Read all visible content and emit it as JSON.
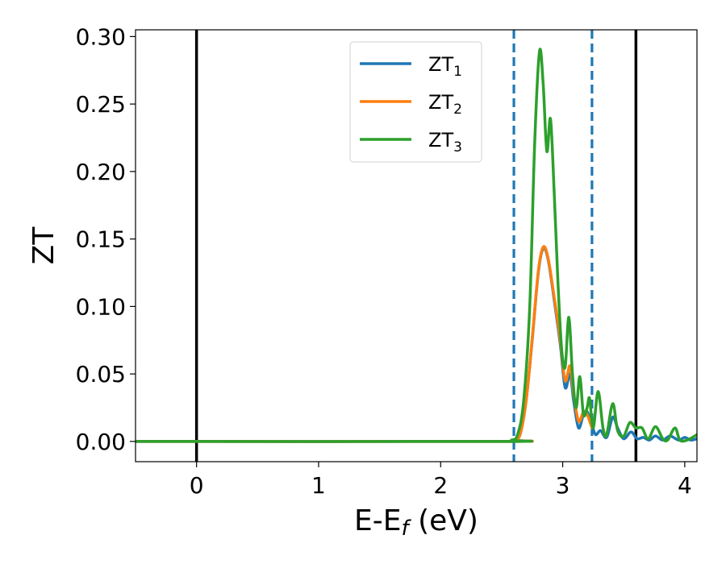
{
  "chart_data": {
    "type": "line",
    "xlabel": "E-E",
    "xlabel_sub": "f",
    "xlabel_unit": " (eV)",
    "ylabel": "ZT",
    "xlim": [
      -0.5,
      4.1
    ],
    "ylim": [
      -0.015,
      0.305
    ],
    "x_ticks": [
      0,
      1,
      2,
      3,
      4
    ],
    "x_tick_labels": [
      "0",
      "1",
      "2",
      "3",
      "4"
    ],
    "y_ticks": [
      0.0,
      0.05,
      0.1,
      0.15,
      0.2,
      0.25,
      0.3
    ],
    "y_tick_labels": [
      "0.00",
      "0.05",
      "0.10",
      "0.15",
      "0.20",
      "0.25",
      "0.30"
    ],
    "grid": false,
    "legend_position": "top-center",
    "vertical_lines": [
      {
        "x": 0.0,
        "style": "solid",
        "color": "#000000"
      },
      {
        "x": 3.6,
        "style": "solid",
        "color": "#000000"
      },
      {
        "x": 2.6,
        "style": "dashed",
        "color": "#1f77b4"
      },
      {
        "x": 3.24,
        "style": "dashed",
        "color": "#1f77b4"
      }
    ],
    "series": [
      {
        "name": "ZT",
        "name_sub": "1",
        "color": "#1f77b4",
        "points": [
          [
            -0.5,
            0
          ],
          [
            2.5,
            0
          ],
          [
            2.6,
            0.001
          ],
          [
            2.65,
            0.005
          ],
          [
            2.7,
            0.03
          ],
          [
            2.75,
            0.075
          ],
          [
            2.8,
            0.125
          ],
          [
            2.84,
            0.143
          ],
          [
            2.88,
            0.135
          ],
          [
            2.93,
            0.105
          ],
          [
            2.98,
            0.072
          ],
          [
            3.02,
            0.04
          ],
          [
            3.06,
            0.05
          ],
          [
            3.09,
            0.03
          ],
          [
            3.13,
            0.01
          ],
          [
            3.17,
            0.02
          ],
          [
            3.2,
            0.022
          ],
          [
            3.24,
            0.012
          ],
          [
            3.27,
            0.005
          ],
          [
            3.31,
            0.008
          ],
          [
            3.36,
            0.003
          ],
          [
            3.41,
            0.018
          ],
          [
            3.45,
            0.01
          ],
          [
            3.5,
            0.002
          ],
          [
            3.56,
            0.007
          ],
          [
            3.61,
            0.002
          ],
          [
            3.66,
            0.003
          ],
          [
            3.71,
            0.001
          ],
          [
            3.76,
            0.004
          ],
          [
            3.82,
            0.001
          ],
          [
            3.88,
            0.004
          ],
          [
            3.95,
            0.001
          ],
          [
            4.0,
            0.003
          ],
          [
            4.05,
            0.001
          ],
          [
            4.1,
            0.002
          ]
        ]
      },
      {
        "name": "ZT",
        "name_sub": "2",
        "color": "#ff7f0e",
        "points": [
          [
            -0.5,
            0
          ],
          [
            2.5,
            0
          ],
          [
            2.6,
            0.001
          ],
          [
            2.65,
            0.005
          ],
          [
            2.7,
            0.03
          ],
          [
            2.75,
            0.076
          ],
          [
            2.8,
            0.126
          ],
          [
            2.84,
            0.144
          ],
          [
            2.88,
            0.136
          ],
          [
            2.93,
            0.107
          ],
          [
            2.98,
            0.075
          ],
          [
            3.02,
            0.045
          ],
          [
            3.06,
            0.056
          ],
          [
            3.09,
            0.035
          ],
          [
            3.13,
            0.015
          ],
          [
            3.17,
            0.022
          ],
          [
            3.2,
            0.02
          ],
          [
            3.24,
            0.01
          ]
        ]
      },
      {
        "name": "ZT",
        "name_sub": "3",
        "color": "#2ca02c",
        "points": [
          [
            -0.5,
            0
          ],
          [
            2.5,
            0
          ],
          [
            2.58,
            0.001
          ],
          [
            2.63,
            0.005
          ],
          [
            2.68,
            0.03
          ],
          [
            2.73,
            0.1
          ],
          [
            2.77,
            0.22
          ],
          [
            2.81,
            0.289
          ],
          [
            2.84,
            0.265
          ],
          [
            2.87,
            0.215
          ],
          [
            2.9,
            0.239
          ],
          [
            2.93,
            0.185
          ],
          [
            2.96,
            0.12
          ],
          [
            2.99,
            0.07
          ],
          [
            3.02,
            0.055
          ],
          [
            3.05,
            0.092
          ],
          [
            3.08,
            0.05
          ],
          [
            3.11,
            0.025
          ],
          [
            3.14,
            0.048
          ],
          [
            3.17,
            0.02
          ],
          [
            3.2,
            0.025
          ],
          [
            3.22,
            0.032
          ],
          [
            3.25,
            0.01
          ],
          [
            3.29,
            0.037
          ],
          [
            3.33,
            0.01
          ],
          [
            3.36,
            0.005
          ],
          [
            3.41,
            0.028
          ],
          [
            3.45,
            0.008
          ],
          [
            3.5,
            0.004
          ],
          [
            3.55,
            0.014
          ],
          [
            3.6,
            0.01
          ],
          [
            3.65,
            0.01
          ],
          [
            3.7,
            0.002
          ],
          [
            3.76,
            0.011
          ],
          [
            3.82,
            0.002
          ],
          [
            3.86,
            0.001
          ],
          [
            3.92,
            0.01
          ],
          [
            3.96,
            0.001
          ],
          [
            4.02,
            0.001
          ],
          [
            4.1,
            0.005
          ]
        ]
      }
    ]
  }
}
